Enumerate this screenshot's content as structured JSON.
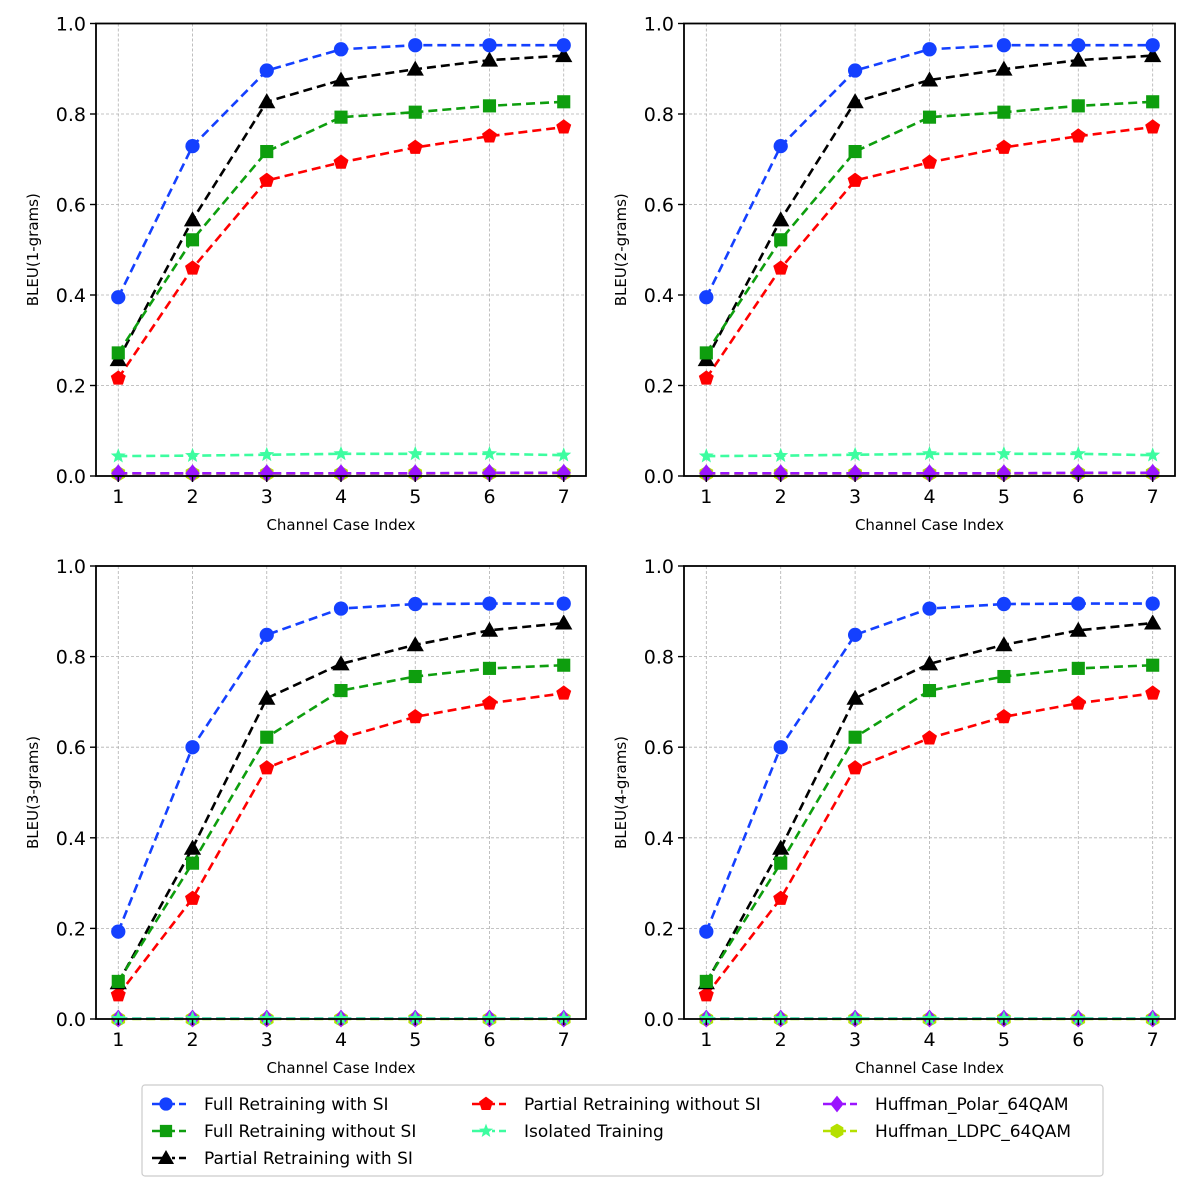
{
  "legend": {
    "placement": "bottom-center",
    "columns": 3
  },
  "series_styles": [
    {
      "name": "Full Retraining with SI",
      "color": "#1440ff",
      "marker": "circle"
    },
    {
      "name": "Full Retraining without SI",
      "color": "#0e9e0e",
      "marker": "square"
    },
    {
      "name": "Partial Retraining with SI",
      "color": "#000000",
      "marker": "triangle"
    },
    {
      "name": "Partial Retraining without SI",
      "color": "#ff0000",
      "marker": "pentagon"
    },
    {
      "name": "Isolated Training",
      "color": "#3dfda0",
      "marker": "star"
    },
    {
      "name": "Huffman_Polar_64QAM",
      "color": "#9b14ff",
      "marker": "diamond"
    },
    {
      "name": "Huffman_LDPC_64QAM",
      "color": "#b5e000",
      "marker": "hexagon"
    }
  ],
  "chart_data": [
    {
      "type": "line",
      "panel": "top-left",
      "title": "",
      "xlabel": "Channel Case Index",
      "ylabel": "BLEU(1-grams)",
      "x": [
        1,
        2,
        3,
        4,
        5,
        6,
        7
      ],
      "xticks": [
        "1",
        "2",
        "3",
        "4",
        "5",
        "6",
        "7"
      ],
      "yticks": [
        "0.0",
        "0.2",
        "0.4",
        "0.6",
        "0.8",
        "1.0"
      ],
      "ylim": [
        0,
        1.0
      ],
      "xlim": [
        0.7,
        7.3
      ],
      "grid": true,
      "series": [
        {
          "name": "Full Retraining with SI",
          "values": [
            0.395,
            0.729,
            0.896,
            0.943,
            0.952,
            0.952,
            0.952
          ]
        },
        {
          "name": "Full Retraining without SI",
          "values": [
            0.272,
            0.522,
            0.717,
            0.793,
            0.804,
            0.818,
            0.827
          ]
        },
        {
          "name": "Partial Retraining with SI",
          "values": [
            0.257,
            0.566,
            0.827,
            0.875,
            0.899,
            0.919,
            0.929
          ]
        },
        {
          "name": "Partial Retraining without SI",
          "values": [
            0.216,
            0.459,
            0.653,
            0.693,
            0.726,
            0.751,
            0.771
          ]
        },
        {
          "name": "Isolated Training",
          "values": [
            0.044,
            0.045,
            0.047,
            0.049,
            0.049,
            0.049,
            0.046
          ]
        },
        {
          "name": "Huffman_Polar_64QAM",
          "values": [
            0.006,
            0.006,
            0.006,
            0.006,
            0.006,
            0.007,
            0.007
          ]
        },
        {
          "name": "Huffman_LDPC_64QAM",
          "values": [
            0.005,
            0.005,
            0.005,
            0.005,
            0.005,
            0.006,
            0.006
          ]
        }
      ]
    },
    {
      "type": "line",
      "panel": "top-right",
      "title": "",
      "xlabel": "Channel Case Index",
      "ylabel": "BLEU(2-grams)",
      "x": [
        1,
        2,
        3,
        4,
        5,
        6,
        7
      ],
      "xticks": [
        "1",
        "2",
        "3",
        "4",
        "5",
        "6",
        "7"
      ],
      "yticks": [
        "0.0",
        "0.2",
        "0.4",
        "0.6",
        "0.8",
        "1.0"
      ],
      "ylim": [
        0,
        1.0
      ],
      "xlim": [
        0.7,
        7.3
      ],
      "grid": true,
      "series": [
        {
          "name": "Full Retraining with SI",
          "values": [
            0.395,
            0.729,
            0.896,
            0.943,
            0.952,
            0.952,
            0.952
          ]
        },
        {
          "name": "Full Retraining without SI",
          "values": [
            0.272,
            0.522,
            0.717,
            0.793,
            0.804,
            0.818,
            0.827
          ]
        },
        {
          "name": "Partial Retraining with SI",
          "values": [
            0.257,
            0.566,
            0.827,
            0.875,
            0.899,
            0.919,
            0.929
          ]
        },
        {
          "name": "Partial Retraining without SI",
          "values": [
            0.216,
            0.459,
            0.653,
            0.693,
            0.726,
            0.751,
            0.771
          ]
        },
        {
          "name": "Isolated Training",
          "values": [
            0.044,
            0.045,
            0.047,
            0.049,
            0.049,
            0.049,
            0.046
          ]
        },
        {
          "name": "Huffman_Polar_64QAM",
          "values": [
            0.006,
            0.006,
            0.006,
            0.006,
            0.006,
            0.007,
            0.007
          ]
        },
        {
          "name": "Huffman_LDPC_64QAM",
          "values": [
            0.005,
            0.005,
            0.005,
            0.005,
            0.005,
            0.006,
            0.006
          ]
        }
      ]
    },
    {
      "type": "line",
      "panel": "bottom-left",
      "title": "",
      "xlabel": "Channel Case Index",
      "ylabel": "BLEU(3-grams)",
      "x": [
        1,
        2,
        3,
        4,
        5,
        6,
        7
      ],
      "xticks": [
        "1",
        "2",
        "3",
        "4",
        "5",
        "6",
        "7"
      ],
      "yticks": [
        "0.0",
        "0.2",
        "0.4",
        "0.6",
        "0.8",
        "1.0"
      ],
      "ylim": [
        0,
        1.0
      ],
      "xlim": [
        0.7,
        7.3
      ],
      "grid": true,
      "series": [
        {
          "name": "Full Retraining with SI",
          "values": [
            0.193,
            0.6,
            0.848,
            0.906,
            0.916,
            0.917,
            0.917
          ]
        },
        {
          "name": "Full Retraining without SI",
          "values": [
            0.083,
            0.344,
            0.622,
            0.725,
            0.756,
            0.774,
            0.781
          ]
        },
        {
          "name": "Partial Retraining with SI",
          "values": [
            0.08,
            0.377,
            0.708,
            0.784,
            0.826,
            0.858,
            0.874
          ]
        },
        {
          "name": "Partial Retraining without SI",
          "values": [
            0.053,
            0.266,
            0.554,
            0.62,
            0.667,
            0.697,
            0.719
          ]
        },
        {
          "name": "Isolated Training",
          "values": [
            0.001,
            0.001,
            0.001,
            0.001,
            0.001,
            0.001,
            0.001
          ]
        },
        {
          "name": "Huffman_Polar_64QAM",
          "values": [
            0.001,
            0.001,
            0.001,
            0.001,
            0.001,
            0.001,
            0.001
          ]
        },
        {
          "name": "Huffman_LDPC_64QAM",
          "values": [
            0.0,
            0.0,
            0.0,
            0.0,
            0.0,
            0.0,
            0.0
          ]
        }
      ]
    },
    {
      "type": "line",
      "panel": "bottom-right",
      "title": "",
      "xlabel": "Channel Case Index",
      "ylabel": "BLEU(4-grams)",
      "x": [
        1,
        2,
        3,
        4,
        5,
        6,
        7
      ],
      "xticks": [
        "1",
        "2",
        "3",
        "4",
        "5",
        "6",
        "7"
      ],
      "yticks": [
        "0.0",
        "0.2",
        "0.4",
        "0.6",
        "0.8",
        "1.0"
      ],
      "ylim": [
        0,
        1.0
      ],
      "xlim": [
        0.7,
        7.3
      ],
      "grid": true,
      "series": [
        {
          "name": "Full Retraining with SI",
          "values": [
            0.193,
            0.6,
            0.848,
            0.906,
            0.916,
            0.917,
            0.917
          ]
        },
        {
          "name": "Full Retraining without SI",
          "values": [
            0.083,
            0.344,
            0.622,
            0.725,
            0.756,
            0.774,
            0.781
          ]
        },
        {
          "name": "Partial Retraining with SI",
          "values": [
            0.08,
            0.377,
            0.708,
            0.784,
            0.826,
            0.858,
            0.874
          ]
        },
        {
          "name": "Partial Retraining without SI",
          "values": [
            0.053,
            0.266,
            0.554,
            0.62,
            0.667,
            0.697,
            0.719
          ]
        },
        {
          "name": "Isolated Training",
          "values": [
            0.001,
            0.001,
            0.001,
            0.001,
            0.001,
            0.001,
            0.001
          ]
        },
        {
          "name": "Huffman_Polar_64QAM",
          "values": [
            0.001,
            0.001,
            0.001,
            0.001,
            0.001,
            0.001,
            0.001
          ]
        },
        {
          "name": "Huffman_LDPC_64QAM",
          "values": [
            0.0,
            0.0,
            0.0,
            0.0,
            0.0,
            0.0,
            0.0
          ]
        }
      ]
    }
  ]
}
